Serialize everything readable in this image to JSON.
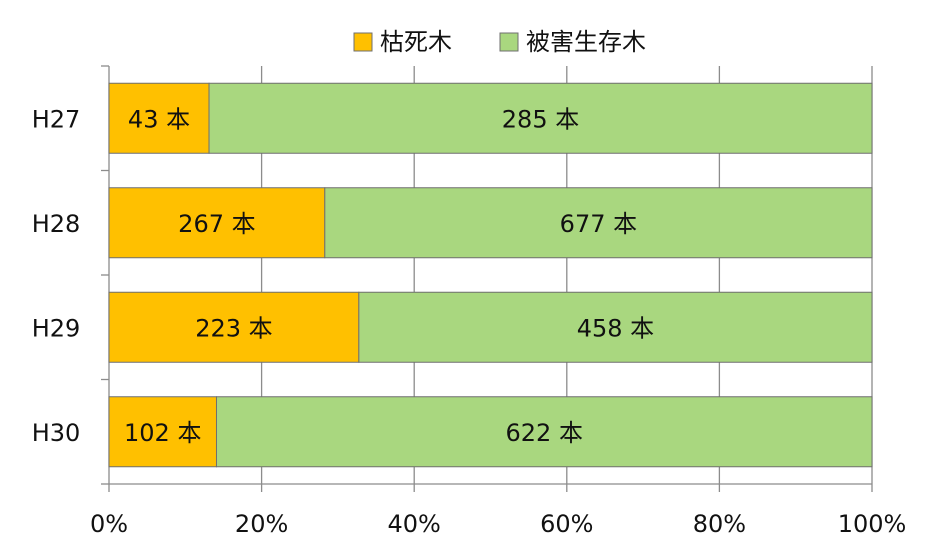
{
  "chart_data": {
    "type": "bar",
    "orientation": "horizontal",
    "stacked": "percent",
    "categories": [
      "H27",
      "H28",
      "H29",
      "H30"
    ],
    "series": [
      {
        "name": "枯死木",
        "color": "#FFC000",
        "values": [
          43,
          267,
          223,
          102
        ],
        "labels": [
          "43 本",
          "267 本",
          "223 本",
          "102 本"
        ]
      },
      {
        "name": "被害生存木",
        "color": "#A9D77F",
        "values": [
          285,
          677,
          458,
          622
        ],
        "labels": [
          "285 本",
          "677 本",
          "458 本",
          "622 本"
        ]
      }
    ],
    "xticks": [
      "0%",
      "20%",
      "40%",
      "60%",
      "80%",
      "100%"
    ],
    "xlim": [
      0,
      100
    ],
    "grid": true,
    "legend": "top"
  }
}
